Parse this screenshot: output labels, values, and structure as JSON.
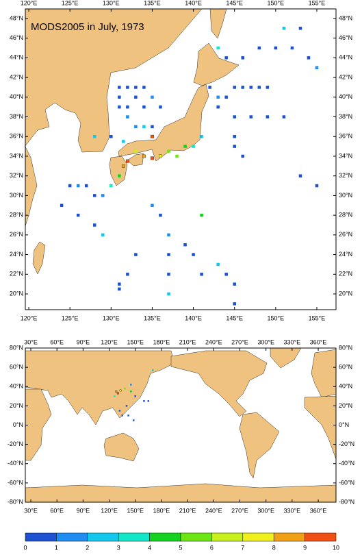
{
  "top_map": {
    "title": "MODS2005 in July, 1973",
    "lonlim": [
      119.58,
      157.33
    ],
    "latlim": [
      18.4,
      48.97
    ],
    "lonticks": [
      {
        "value": 120,
        "label": "120°E"
      },
      {
        "value": 125,
        "label": "125°E"
      },
      {
        "value": 130,
        "label": "130°E"
      },
      {
        "value": 135,
        "label": "135°E"
      },
      {
        "value": 140,
        "label": "140°E"
      },
      {
        "value": 145,
        "label": "145°E"
      },
      {
        "value": 150,
        "label": "150°E"
      },
      {
        "value": 155,
        "label": "155°E"
      }
    ],
    "latticks": [
      {
        "value": 20,
        "label": "20°N"
      },
      {
        "value": 22,
        "label": "22°N"
      },
      {
        "value": 24,
        "label": "24°N"
      },
      {
        "value": 26,
        "label": "26°N"
      },
      {
        "value": 28,
        "label": "28°N"
      },
      {
        "value": 30,
        "label": "30°N"
      },
      {
        "value": 32,
        "label": "32°N"
      },
      {
        "value": 34,
        "label": "34°N"
      },
      {
        "value": 36,
        "label": "36°N"
      },
      {
        "value": 38,
        "label": "38°N"
      },
      {
        "value": 40,
        "label": "40°N"
      },
      {
        "value": 42,
        "label": "42°N"
      },
      {
        "value": 44,
        "label": "44°N"
      },
      {
        "value": 46,
        "label": "46°N"
      },
      {
        "value": 48,
        "label": "48°N"
      }
    ],
    "observations": {
      "lon": [
        131,
        132,
        133,
        134,
        131,
        133,
        135,
        131,
        132,
        134,
        136,
        132,
        133,
        134,
        135,
        130,
        131.5,
        142,
        143,
        144,
        145,
        146,
        147,
        148,
        149,
        143,
        145,
        147,
        149,
        151,
        145,
        145,
        146,
        143,
        144,
        146,
        148,
        150,
        152,
        154,
        155,
        151,
        153,
        135,
        133,
        134,
        135,
        132,
        131.5,
        136,
        137,
        139,
        140,
        141,
        138,
        125,
        126,
        127,
        128,
        129,
        130,
        131,
        124,
        126,
        128,
        129,
        135,
        136,
        137,
        137,
        137,
        137,
        133,
        132,
        131,
        139,
        140,
        141,
        143,
        144,
        145,
        145,
        141,
        153,
        155,
        128,
        131
      ],
      "lat": [
        41,
        41,
        41,
        41,
        40,
        40,
        40,
        39,
        39,
        39,
        39,
        38,
        37,
        37,
        37,
        36,
        35.5,
        41,
        40,
        40,
        41,
        41,
        41,
        41,
        41,
        39,
        38,
        38,
        38,
        38,
        36,
        35,
        34,
        45,
        44,
        44,
        45,
        45,
        45,
        44,
        43,
        47,
        47,
        36,
        34.5,
        34,
        33.8,
        33.5,
        33,
        34,
        34.5,
        35,
        35,
        36,
        34,
        31,
        31,
        31,
        30,
        30,
        31,
        32,
        29,
        28,
        27,
        26,
        29,
        28,
        26,
        24,
        22,
        20,
        24,
        22,
        21,
        25,
        24,
        22,
        23,
        22,
        21,
        19,
        28,
        32,
        31,
        36,
        20.5
      ],
      "count": [
        0.5,
        0.5,
        0.5,
        0.5,
        0.5,
        0.5,
        1.5,
        0.5,
        0.5,
        0.5,
        0.5,
        1.5,
        1.5,
        2.5,
        0.5,
        0.5,
        2.5,
        0.5,
        1.5,
        0.5,
        0.5,
        0.5,
        0.5,
        0.5,
        0.5,
        0.5,
        0.5,
        0.5,
        0.5,
        0.5,
        0.5,
        0.5,
        0.5,
        3.5,
        0.5,
        0.5,
        0.5,
        0.5,
        0.5,
        0.5,
        1.5,
        2.5,
        0.5,
        9.5,
        6.5,
        8.5,
        9.5,
        9.5,
        8.5,
        7.5,
        5.5,
        4.5,
        3.5,
        2.5,
        5.5,
        0.5,
        1.5,
        0.5,
        0.5,
        1.5,
        3.5,
        4.5,
        0.5,
        0.5,
        0.5,
        2.5,
        1.5,
        0.5,
        1.5,
        0.5,
        0.5,
        2.5,
        0.5,
        0.5,
        0.5,
        0.5,
        0.5,
        0.5,
        2.5,
        0.5,
        0.5,
        0.5,
        4.5,
        0.5,
        0.5,
        2.5,
        0.5
      ]
    }
  },
  "bottom_map": {
    "lonlim": [
      23.7,
      380.4
    ],
    "latlim": [
      -80,
      80
    ],
    "lonticks": [
      {
        "value": 30,
        "label": "30°E"
      },
      {
        "value": 60,
        "label": "60°E"
      },
      {
        "value": 90,
        "label": "90°E"
      },
      {
        "value": 120,
        "label": "120°E"
      },
      {
        "value": 150,
        "label": "150°E"
      },
      {
        "value": 180,
        "label": "180°E"
      },
      {
        "value": 210,
        "label": "210°E"
      },
      {
        "value": 240,
        "label": "240°E"
      },
      {
        "value": 270,
        "label": "270°E"
      },
      {
        "value": 300,
        "label": "300°E"
      },
      {
        "value": 330,
        "label": "330°E"
      },
      {
        "value": 360,
        "label": "360°E"
      }
    ],
    "latticks": [
      {
        "value": -80,
        "label": "-80°N"
      },
      {
        "value": -60,
        "label": "-60°N"
      },
      {
        "value": -40,
        "label": "-40°N"
      },
      {
        "value": -20,
        "label": "-20°N"
      },
      {
        "value": 0,
        "label": "0°N"
      },
      {
        "value": 20,
        "label": "20°N"
      },
      {
        "value": 40,
        "label": "40°N"
      },
      {
        "value": 60,
        "label": "60°N"
      },
      {
        "value": 80,
        "label": "80°N"
      }
    ],
    "observations": {
      "lon": [
        128,
        130,
        133,
        138,
        145,
        150,
        160,
        165,
        140,
        142,
        148,
        135,
        132,
        170,
        126,
        145
      ],
      "lat": [
        35,
        33,
        36,
        38,
        42,
        30,
        25,
        25,
        20,
        10,
        5,
        10,
        15,
        57,
        30,
        35
      ],
      "count": [
        8.5,
        9.5,
        7.5,
        5.5,
        1.5,
        0.5,
        0.5,
        0.5,
        0.5,
        0.5,
        0.5,
        0.5,
        0.5,
        2.5,
        3.5,
        4.5
      ]
    }
  },
  "colorbar": {
    "bounds": [
      0,
      1,
      2,
      3,
      4,
      5,
      6,
      7,
      8,
      9,
      10
    ],
    "colors": [
      "#1e50d2",
      "#1e8cf0",
      "#14c8eb",
      "#14e6c8",
      "#14d21e",
      "#6ee614",
      "#c8f01e",
      "#f0f01e",
      "#f0a014",
      "#f05014"
    ]
  }
}
